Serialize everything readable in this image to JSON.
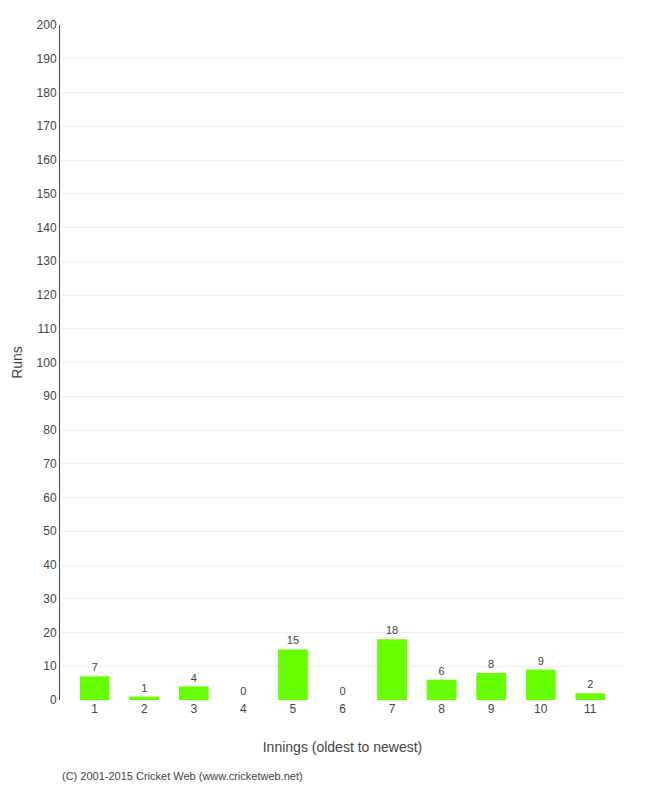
{
  "chart_data": {
    "type": "bar",
    "categories": [
      1,
      2,
      3,
      4,
      5,
      6,
      7,
      8,
      9,
      10,
      11
    ],
    "values": [
      7,
      1,
      4,
      0,
      15,
      0,
      18,
      6,
      8,
      9,
      2
    ],
    "color": "#66ff00",
    "xlabel": "Innings (oldest to newest)",
    "ylabel": "Runs",
    "ylim": [
      0,
      200
    ],
    "yticks": [
      0,
      10,
      20,
      30,
      40,
      50,
      60,
      70,
      80,
      90,
      100,
      110,
      120,
      130,
      140,
      150,
      160,
      170,
      180,
      190,
      200
    ],
    "grid": true,
    "data_labels": true,
    "annotations": [
      "(C) 2001-2015 Cricket Web (www.cricketweb.net)"
    ]
  }
}
